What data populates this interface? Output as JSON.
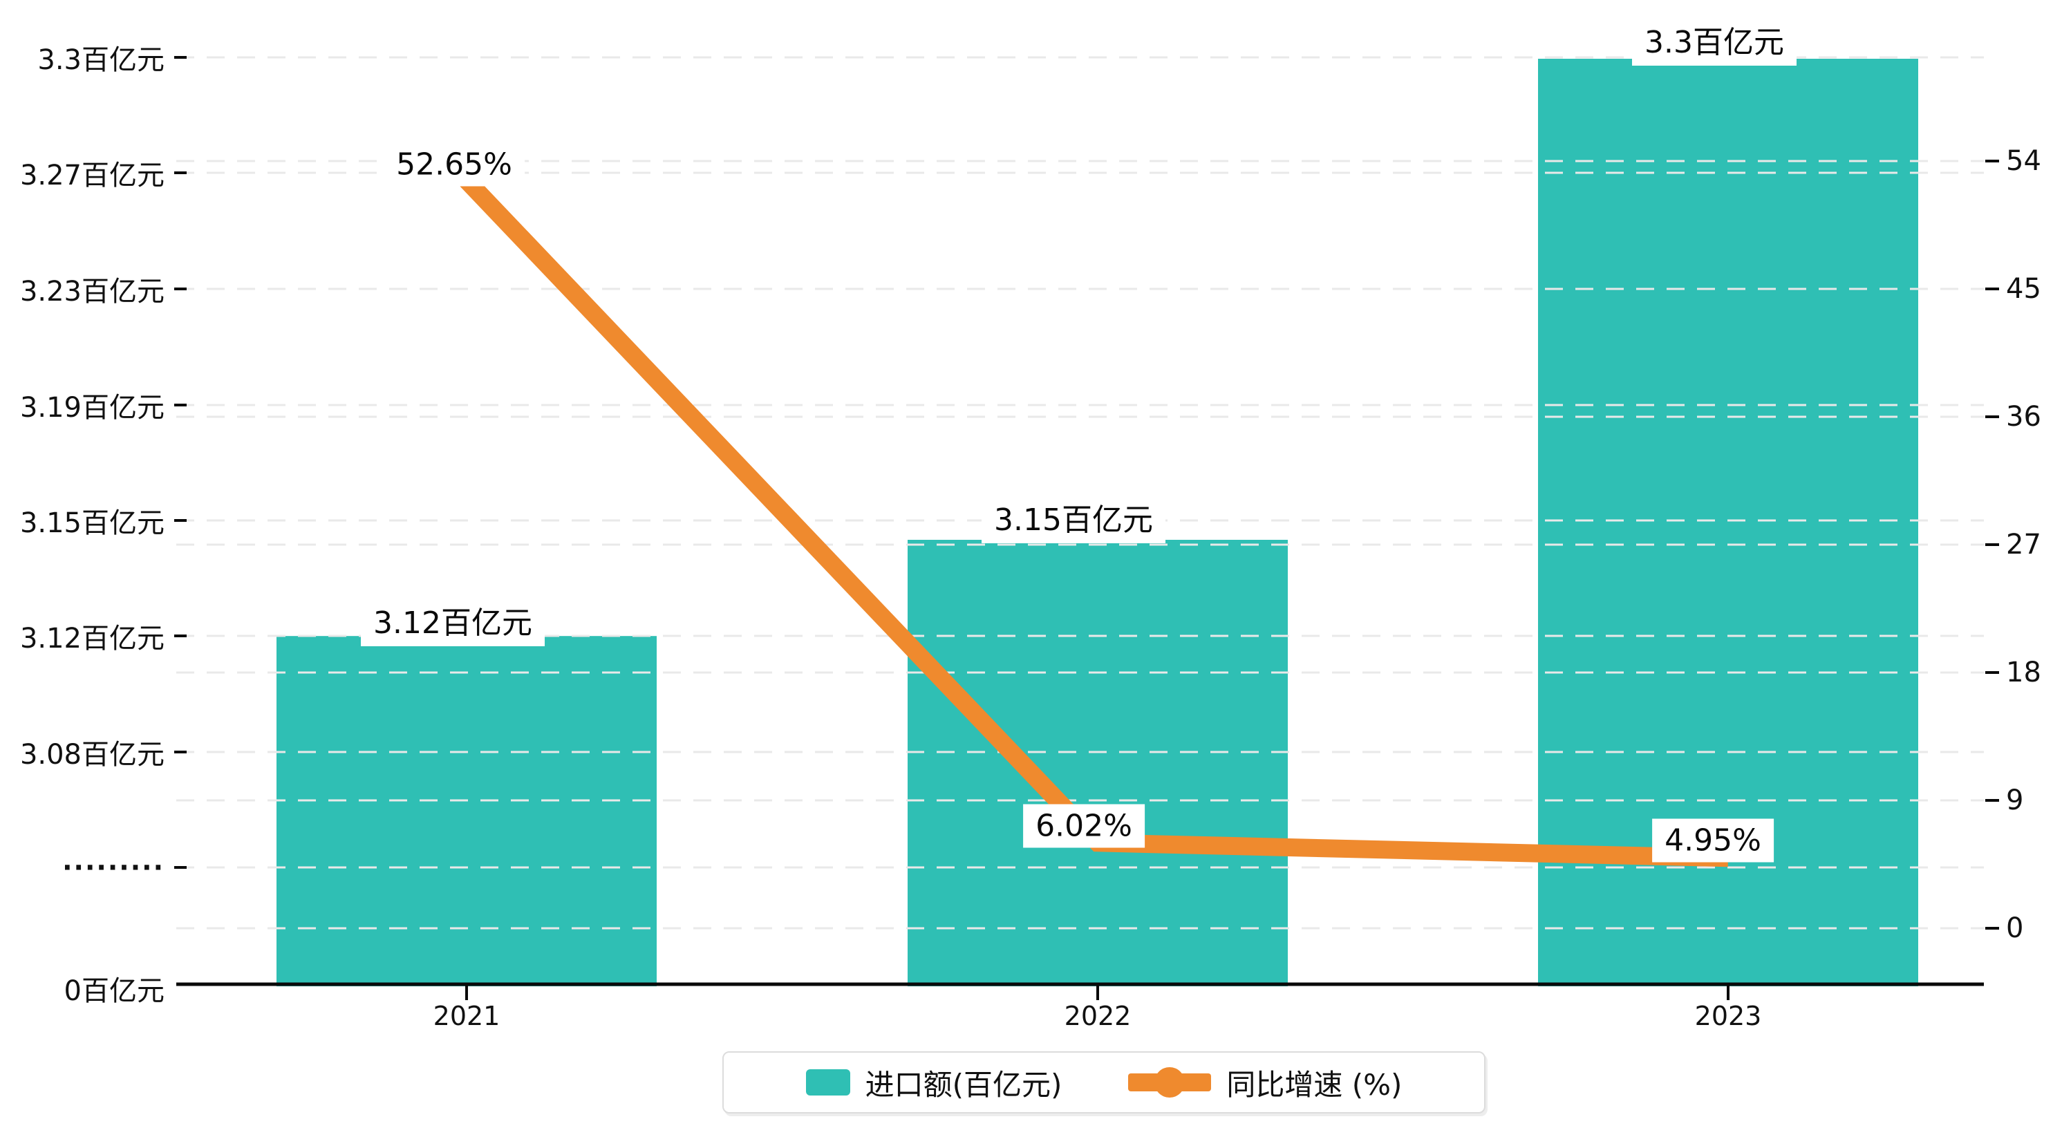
{
  "chart_data": {
    "type": "bar",
    "categories": [
      "2021",
      "2022",
      "2023"
    ],
    "series": [
      {
        "name": "进口额(百亿元)",
        "type": "bar",
        "axis": "left",
        "unit": "百亿元",
        "color": "#2FBFB4",
        "values": [
          3.12,
          3.15,
          3.3
        ],
        "labels": [
          "3.12百亿元",
          "3.15百亿元",
          "3.3百亿元"
        ]
      },
      {
        "name": "同比增速 (%)",
        "type": "line",
        "axis": "right",
        "unit": "%",
        "color": "#EF8A2E",
        "values": [
          52.65,
          6.02,
          4.95
        ],
        "labels": [
          "52.65%",
          "6.02%",
          "4.95%"
        ]
      }
    ],
    "left_axis": {
      "ticks": [
        "3.3百亿元",
        "3.27百亿元",
        "3.23百亿元",
        "3.19百亿元",
        "3.15百亿元",
        "3.12百亿元",
        "3.08百亿元",
        "·········",
        "0百亿元"
      ],
      "has_break": true
    },
    "right_axis": {
      "ticks": [
        "54",
        "45",
        "36",
        "27",
        "18",
        "9",
        "0"
      ],
      "range": [
        0,
        54
      ]
    },
    "grid": "dashed horizontal",
    "legend_position": "bottom-center"
  },
  "legend": {
    "items": [
      {
        "label": "进口额(百亿元)",
        "marker": "bar-swatch",
        "color": "#2FBFB4"
      },
      {
        "label": "同比增速 (%)",
        "marker": "line-dot",
        "color": "#EF8A2E"
      }
    ]
  }
}
